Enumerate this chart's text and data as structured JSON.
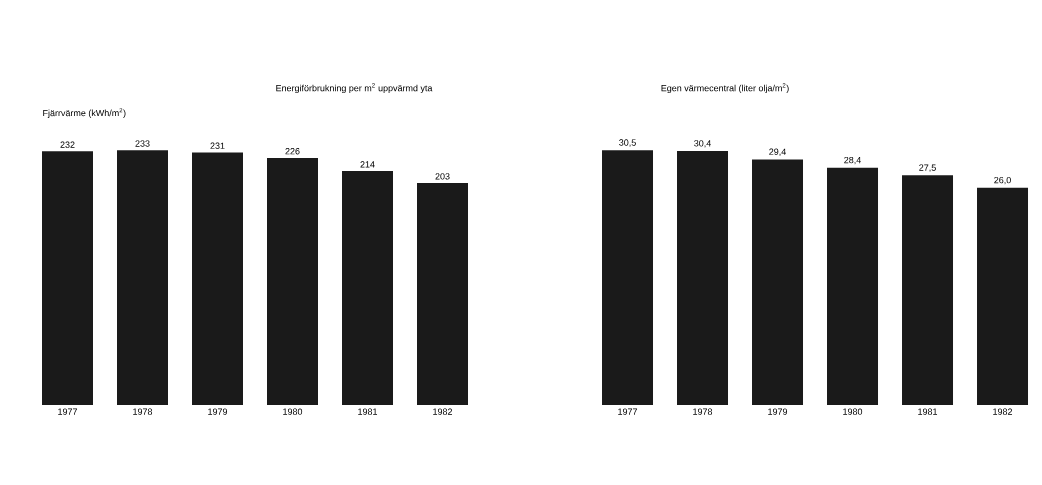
{
  "chart_data": [
    {
      "type": "bar",
      "title": "Energiförbrukning per m$^{2}$ uppvärmd yta",
      "ylabel": "Fjärrvärme (kWh/m$^{2}$)",
      "categories": [
        "1977",
        "1978",
        "1979",
        "1980",
        "1981",
        "1982"
      ],
      "values": [
        232,
        233,
        231,
        226,
        214,
        203
      ],
      "color": "#1a1a1a",
      "data_labels": true
    },
    {
      "type": "bar",
      "title": "Egen värmecentral (liter olja/m$^{2}$)",
      "categories": [
        "1977",
        "1978",
        "1979",
        "1980",
        "1981",
        "1982"
      ],
      "values": [
        30.5,
        30.4,
        29.4,
        28.4,
        27.5,
        26.0
      ],
      "value_labels": [
        "30,5",
        "30,4",
        "29,4",
        "28,4",
        "27,5",
        "26,0"
      ],
      "color": "#1a1a1a"
    }
  ]
}
